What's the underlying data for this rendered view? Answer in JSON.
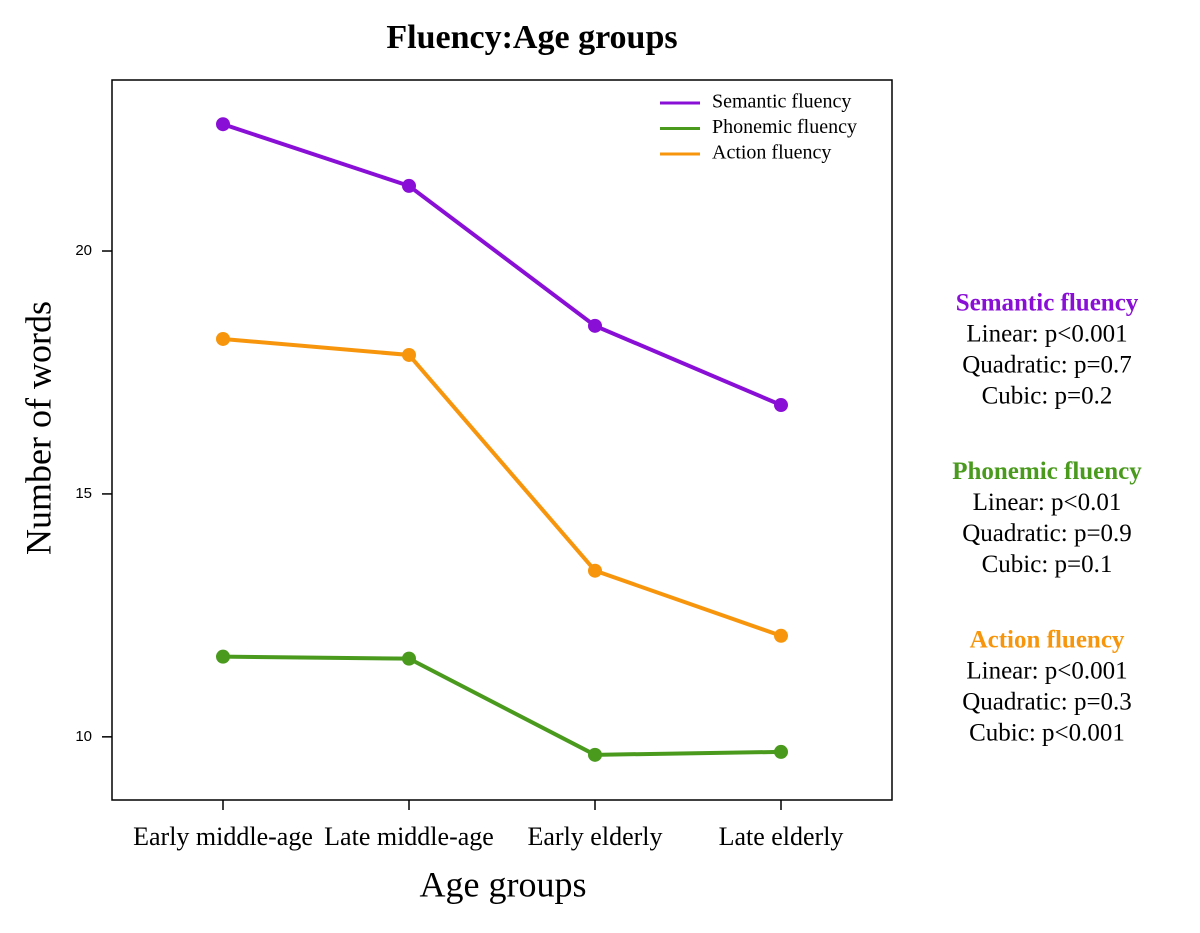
{
  "chart_data": {
    "type": "line",
    "title": "Fluency:Age groups",
    "x_label": "Age groups",
    "y_label": "Number of words",
    "categories": [
      "Early middle-age",
      "Late middle-age",
      "Early elderly",
      "Late elderly"
    ],
    "series": [
      {
        "name": "Semantic fluency",
        "color": "#8a0fd6",
        "values": [
          22.61,
          21.34,
          18.46,
          16.83
        ]
      },
      {
        "name": "Phonemic fluency",
        "color": "#4a9a1e",
        "values": [
          11.65,
          11.61,
          9.63,
          9.69
        ]
      },
      {
        "name": "Action fluency",
        "color": "#f7960d",
        "values": [
          18.19,
          17.86,
          13.42,
          12.08
        ]
      }
    ],
    "ylim": [
      8.7,
      23.52
    ],
    "yticks": [
      10,
      15,
      20
    ],
    "legend": "top-right",
    "annotations": [
      {
        "title": "Semantic fluency",
        "color": "#8a0fd6",
        "lines": [
          "Linear: p<0.001",
          "Quadratic: p=0.7",
          "Cubic: p=0.2"
        ]
      },
      {
        "title": "Phonemic fluency",
        "color": "#4a9a1e",
        "lines": [
          "Linear: p<0.01",
          "Quadratic: p=0.9",
          "Cubic: p=0.1"
        ]
      },
      {
        "title": "Action fluency",
        "color": "#f7960d",
        "lines": [
          "Linear: p<0.001",
          "Quadratic: p=0.3",
          "Cubic: p<0.001"
        ]
      }
    ]
  }
}
